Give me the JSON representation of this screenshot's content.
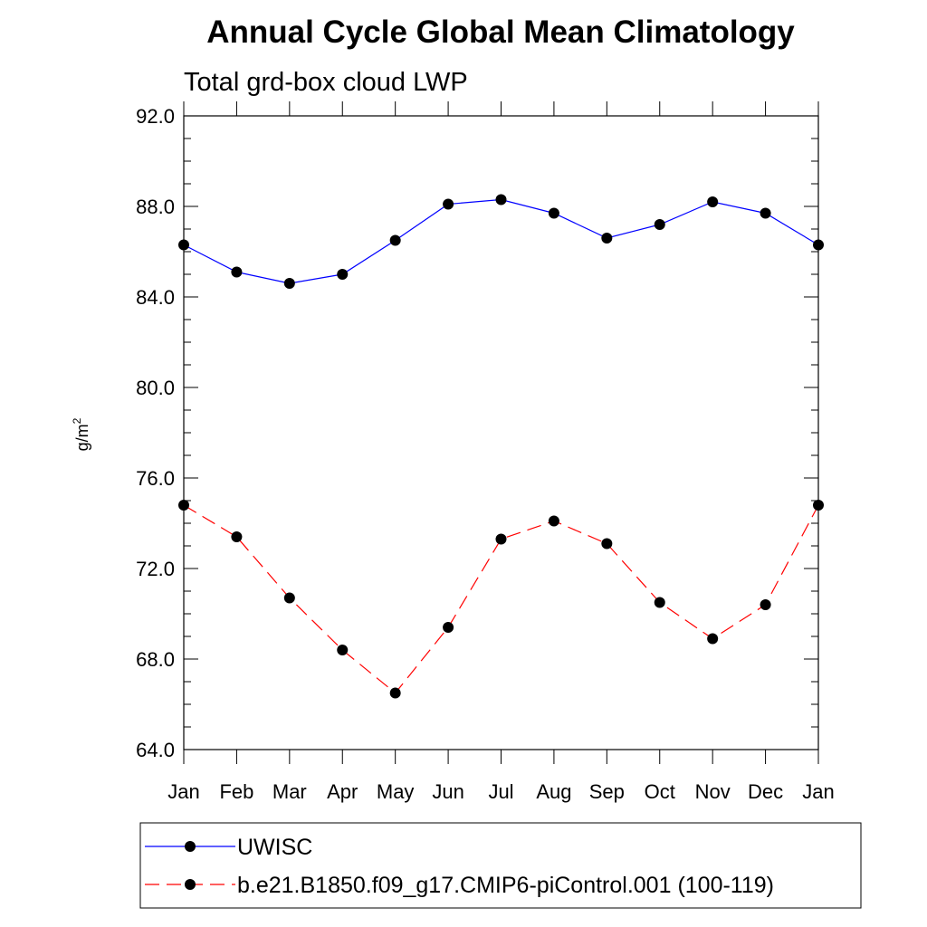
{
  "chart_data": {
    "type": "line",
    "title": "Annual Cycle Global Mean Climatology",
    "subtitle": "Total grd-box cloud LWP",
    "ylabel": {
      "base": "g/m",
      "sup": "2"
    },
    "ylim": [
      64.0,
      92.0
    ],
    "yticks": [
      "64.0",
      "68.0",
      "72.0",
      "76.0",
      "80.0",
      "84.0",
      "88.0",
      "92.0"
    ],
    "categories": [
      "Jan",
      "Feb",
      "Mar",
      "Apr",
      "May",
      "Jun",
      "Jul",
      "Aug",
      "Sep",
      "Oct",
      "Nov",
      "Dec",
      "Jan"
    ],
    "series": [
      {
        "name": "UWISC",
        "color": "#0000ff",
        "dash": "solid",
        "values": [
          86.3,
          85.1,
          84.6,
          85.0,
          86.5,
          88.1,
          88.3,
          87.7,
          86.6,
          87.2,
          88.2,
          87.7,
          86.3
        ]
      },
      {
        "name": "b.e21.B1850.f09_g17.CMIP6-piControl.001 (100-119)",
        "color": "#ff0000",
        "dash": "dashed",
        "values": [
          74.8,
          73.4,
          70.7,
          68.4,
          66.5,
          69.4,
          73.3,
          74.1,
          73.1,
          70.5,
          68.9,
          70.4,
          74.8
        ]
      }
    ],
    "grid": false,
    "legend_position": "bottom"
  }
}
